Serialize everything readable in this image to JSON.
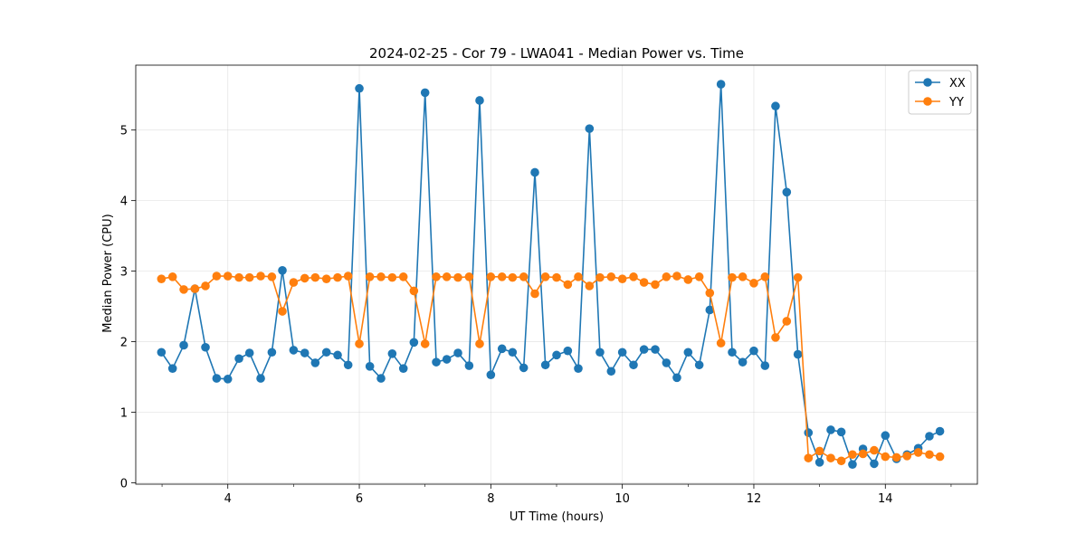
{
  "chart_data": {
    "type": "line",
    "title": "2024-02-25 - Cor 79 - LWA041 - Median Power vs. Time",
    "xlabel": "UT Time (hours)",
    "ylabel": "Median Power (CPU)",
    "xlim": [
      2.6,
      15.4
    ],
    "ylim": [
      -0.02,
      5.92
    ],
    "x_ticks": [
      4,
      6,
      8,
      10,
      12,
      14
    ],
    "x_tick_labels": [
      "4",
      "6",
      "8",
      "10",
      "12",
      "14"
    ],
    "x_minor_ticks": [
      3,
      5,
      7,
      9,
      11,
      13,
      15
    ],
    "y_ticks": [
      0,
      1,
      2,
      3,
      4,
      5
    ],
    "y_tick_labels": [
      "0",
      "1",
      "2",
      "3",
      "4",
      "5"
    ],
    "grid": true,
    "legend_position": "top-right",
    "x": [
      2.99,
      3.16,
      3.33,
      3.5,
      3.66,
      3.83,
      4.0,
      4.17,
      4.33,
      4.5,
      4.67,
      4.83,
      5.0,
      5.17,
      5.33,
      5.5,
      5.67,
      5.83,
      6.0,
      6.16,
      6.33,
      6.5,
      6.67,
      6.83,
      7.0,
      7.17,
      7.33,
      7.5,
      7.67,
      7.83,
      8.0,
      8.17,
      8.33,
      8.5,
      8.67,
      8.83,
      9.0,
      9.17,
      9.33,
      9.5,
      9.66,
      9.83,
      10.0,
      10.17,
      10.33,
      10.5,
      10.67,
      10.83,
      11.0,
      11.17,
      11.33,
      11.5,
      11.67,
      11.83,
      12.0,
      12.17,
      12.33,
      12.5,
      12.67,
      12.83,
      13.0,
      13.17,
      13.33,
      13.5,
      13.66,
      13.83,
      14.0,
      14.17,
      14.33,
      14.5,
      14.67,
      14.83
    ],
    "series": [
      {
        "name": "XX",
        "color": "#1f77b4",
        "values": [
          1.85,
          1.62,
          1.95,
          2.75,
          1.92,
          1.48,
          1.47,
          1.76,
          1.84,
          1.48,
          1.85,
          3.01,
          1.88,
          1.84,
          1.7,
          1.85,
          1.81,
          1.67,
          5.59,
          1.65,
          1.48,
          1.83,
          1.62,
          1.99,
          5.53,
          1.71,
          1.75,
          1.84,
          1.66,
          5.42,
          1.53,
          1.9,
          1.85,
          1.63,
          4.4,
          1.67,
          1.81,
          1.87,
          1.62,
          5.02,
          1.85,
          1.58,
          1.85,
          1.67,
          1.89,
          1.89,
          1.7,
          1.49,
          1.85,
          1.67,
          2.45,
          5.65,
          1.85,
          1.71,
          1.87,
          1.66,
          5.34,
          4.12,
          1.82,
          0.71,
          0.29,
          0.75,
          0.72,
          0.26,
          0.48,
          0.27,
          0.67,
          0.34,
          0.4,
          0.49,
          0.66,
          0.73
        ]
      },
      {
        "name": "YY",
        "color": "#ff7f0e",
        "values": [
          2.89,
          2.92,
          2.74,
          2.75,
          2.79,
          2.93,
          2.93,
          2.91,
          2.91,
          2.93,
          2.92,
          2.43,
          2.84,
          2.9,
          2.91,
          2.89,
          2.91,
          2.93,
          1.97,
          2.92,
          2.92,
          2.91,
          2.92,
          2.72,
          1.97,
          2.92,
          2.92,
          2.91,
          2.92,
          1.97,
          2.92,
          2.92,
          2.91,
          2.92,
          2.68,
          2.92,
          2.91,
          2.81,
          2.92,
          2.79,
          2.91,
          2.92,
          2.89,
          2.92,
          2.84,
          2.81,
          2.92,
          2.93,
          2.88,
          2.92,
          2.69,
          1.98,
          2.91,
          2.92,
          2.83,
          2.92,
          2.06,
          2.29,
          2.91,
          0.35,
          0.45,
          0.35,
          0.31,
          0.4,
          0.41,
          0.46,
          0.37,
          0.36,
          0.38,
          0.43,
          0.4,
          0.37
        ]
      }
    ]
  }
}
